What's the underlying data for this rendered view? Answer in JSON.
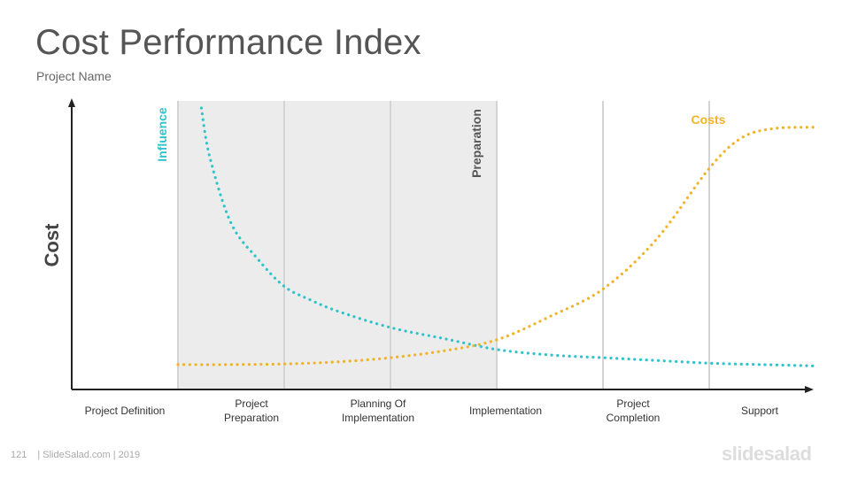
{
  "slide": {
    "title": "Cost Performance Index",
    "subtitle": "Project Name",
    "page_number": "121",
    "footer_text": "| SlideSalad.com | 2019",
    "brand": "slidesalad"
  },
  "chart_data": {
    "type": "line",
    "ylabel": "Cost",
    "categories": [
      [
        "Project  Definition"
      ],
      [
        "Project",
        "Preparation"
      ],
      [
        "Planning  Of",
        "Implementation"
      ],
      [
        "Implementation"
      ],
      [
        "Project",
        "Completion"
      ],
      [
        "Support"
      ]
    ],
    "shaded_phases": [
      1,
      3
    ],
    "annotations": [
      {
        "text": "Influence",
        "color": "#2ec4c9",
        "orientation": "vertical"
      },
      {
        "text": "Preparation",
        "color": "#555555",
        "orientation": "vertical"
      },
      {
        "text": "Costs",
        "color": "#f0b429",
        "orientation": "horizontal"
      }
    ],
    "series": [
      {
        "name": "Influence",
        "color": "#2ec4c9",
        "style": "dotted",
        "x": [
          0.22,
          0.3,
          0.5,
          0.75,
          1,
          1.25,
          1.5,
          2,
          2.5,
          3,
          3.5,
          4,
          4.5,
          5,
          5.5,
          6
        ],
        "y": [
          1.0,
          0.82,
          0.58,
          0.45,
          0.35,
          0.3,
          0.26,
          0.2,
          0.16,
          0.12,
          0.1,
          0.09,
          0.08,
          0.07,
          0.065,
          0.06
        ]
      },
      {
        "name": "Costs",
        "color": "#f0b429",
        "style": "dotted",
        "x": [
          0,
          0.5,
          1,
          1.5,
          2,
          2.5,
          3,
          3.5,
          4,
          4.5,
          5,
          5.3,
          5.6,
          6
        ],
        "y": [
          0.065,
          0.065,
          0.067,
          0.075,
          0.09,
          0.115,
          0.155,
          0.24,
          0.34,
          0.52,
          0.78,
          0.89,
          0.925,
          0.93
        ]
      }
    ],
    "xlim": [
      -1,
      6
    ],
    "ylim": [
      0,
      1.0
    ],
    "grid": "vertical-phase-lines"
  }
}
